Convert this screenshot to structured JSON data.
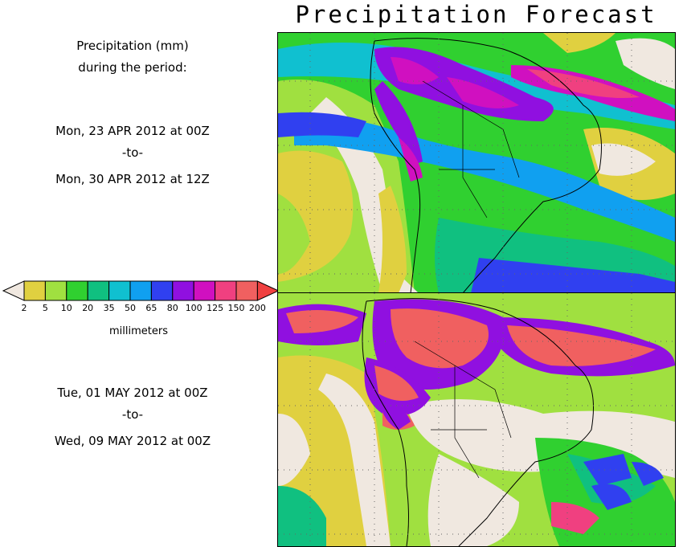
{
  "title": "Precipitation Forecast",
  "sidebar": {
    "heading_line1": "Precipitation (mm)",
    "heading_line2": "during the period:",
    "period1": {
      "start": "Mon, 23 APR 2012 at 00Z",
      "sep": "-to-",
      "end": "Mon, 30 APR 2012 at 12Z"
    },
    "period2": {
      "start": "Tue, 01 MAY 2012 at 00Z",
      "sep": "-to-",
      "end": "Wed, 09 MAY 2012 at 00Z"
    }
  },
  "legend": {
    "unit": "millimeters",
    "ticks": [
      "2",
      "5",
      "10",
      "20",
      "35",
      "50",
      "65",
      "80",
      "100",
      "125",
      "150",
      "200"
    ],
    "colors": [
      "#e0d040",
      "#a0e040",
      "#30d030",
      "#10c080",
      "#10c0d0",
      "#10a0f0",
      "#3040f0",
      "#9010e0",
      "#d010c0",
      "#f04080",
      "#f06060"
    ],
    "low_color": "#f0e8e0",
    "high_color": "#f04040"
  },
  "maps": [
    {
      "name": "period-1-map"
    },
    {
      "name": "period-2-map"
    }
  ]
}
